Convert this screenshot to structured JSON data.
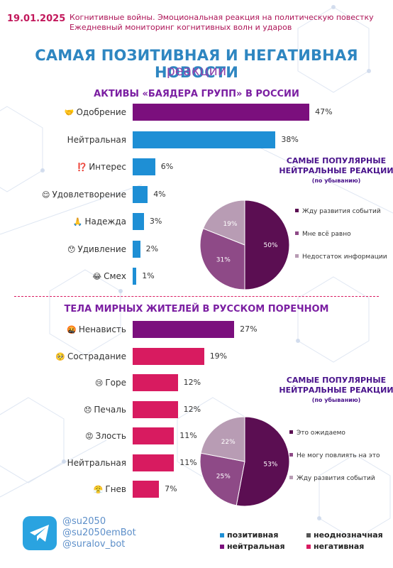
{
  "header": {
    "date": "19.01.2025",
    "line1": "Когнитивные войны. Эмоциональная реакция на политическую повестку",
    "line2": "Ежедневный мониторинг когнитивных волн и ударов",
    "title": "САМАЯ ПОЗИТИВНАЯ И НЕГАТИВНАЯ НОВОСТИ",
    "subtitle": "реакции"
  },
  "colors": {
    "positive": "#1e8fd5",
    "neutral": "#7b0f7d",
    "ambiguous": "#555555",
    "negative": "#d81b60",
    "pie_dark": "#5b0e52",
    "pie_mid": "#8e4a87",
    "pie_light": "#b89cb4"
  },
  "chart_data": [
    {
      "type": "bar",
      "orientation": "horizontal",
      "title": "АКТИВЫ «БАЯДЕРА ГРУПП» В РОССИИ",
      "categories": [
        "Одобрение",
        "Нейтральная",
        "Интерес",
        "Удовлетворение",
        "Надежда",
        "Удивление",
        "Смех"
      ],
      "values": [
        47,
        38,
        6,
        4,
        3,
        2,
        1
      ],
      "labels": [
        "47%",
        "38%",
        "6%",
        "4%",
        "3%",
        "2%",
        "1%"
      ],
      "kinds": [
        "neutral",
        "positive",
        "positive",
        "positive",
        "positive",
        "positive",
        "positive"
      ],
      "icons": [
        "🤝",
        "",
        "⁉️",
        "😌",
        "🙏",
        "😯",
        "😂"
      ],
      "xlim": [
        0,
        50
      ]
    },
    {
      "type": "pie",
      "title": "САМЫЕ ПОПУЛЯРНЫЕ НЕЙТРАЛЬНЫЕ РЕАКЦИИ",
      "note": "(по убыванию)",
      "categories": [
        "Жду развития событий",
        "Мне всё равно",
        "Недостаток информации"
      ],
      "values": [
        50,
        31,
        19
      ],
      "labels": [
        "50%",
        "31%",
        "19%"
      ]
    },
    {
      "type": "bar",
      "orientation": "horizontal",
      "title": "ТЕЛА МИРНЫХ ЖИТЕЛЕЙ В РУССКОМ ПОРЕЧНОМ",
      "categories": [
        "Ненависть",
        "Сострадание",
        "Горе",
        "Печаль",
        "Злость",
        "Нейтральная",
        "Гнев"
      ],
      "values": [
        27,
        19,
        12,
        12,
        11,
        11,
        7
      ],
      "labels": [
        "27%",
        "19%",
        "12%",
        "12%",
        "11%",
        "11%",
        "7%"
      ],
      "kinds": [
        "neutral",
        "negative",
        "negative",
        "negative",
        "negative",
        "negative",
        "negative"
      ],
      "icons": [
        "🤬",
        "🥺",
        "😢",
        "😞",
        "😡",
        "",
        "😤"
      ],
      "xlim": [
        0,
        50
      ]
    },
    {
      "type": "pie",
      "title": "САМЫЕ ПОПУЛЯРНЫЕ НЕЙТРАЛЬНЫЕ РЕАКЦИИ",
      "note": "(по убыванию)",
      "categories": [
        "Это ожидаемо",
        "Не могу повлиять на это",
        "Жду развития событий"
      ],
      "values": [
        53,
        25,
        22
      ],
      "labels": [
        "53%",
        "25%",
        "22%"
      ]
    }
  ],
  "contacts": {
    "telegram_icon": "telegram-icon",
    "handles": [
      "@su2050",
      "@su2050emBot",
      "@suralov_bot"
    ]
  },
  "legend": {
    "items": [
      {
        "label": "позитивная",
        "kind": "positive"
      },
      {
        "label": "неоднозначная",
        "kind": "ambiguous"
      },
      {
        "label": "нейтральная",
        "kind": "neutral"
      },
      {
        "label": "негативная",
        "kind": "negative"
      }
    ]
  }
}
